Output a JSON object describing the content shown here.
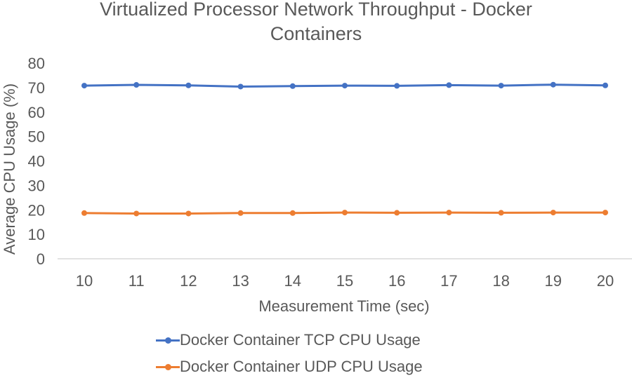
{
  "chart_data": {
    "type": "line",
    "title": "Virtualized Processor Network Throughput - Docker Containers",
    "title_lines": [
      "Virtualized Processor Network Throughput - Docker",
      "Containers"
    ],
    "xlabel": "Measurement Time (sec)",
    "ylabel": "Average CPU Usage (%)",
    "categories": [
      "10",
      "11",
      "12",
      "13",
      "14",
      "15",
      "16",
      "17",
      "18",
      "19",
      "20"
    ],
    "ylim": [
      0,
      80
    ],
    "yticks": [
      "0",
      "10",
      "20",
      "30",
      "40",
      "50",
      "60",
      "70",
      "80"
    ],
    "grid": false,
    "legend_position": "bottom",
    "series": [
      {
        "name": "Docker Container TCP CPU Usage",
        "color": "#4472C4",
        "values": [
          70.8,
          71.1,
          70.9,
          70.4,
          70.6,
          70.8,
          70.7,
          71.0,
          70.8,
          71.2,
          70.9
        ]
      },
      {
        "name": "Docker Container UDP CPU Usage",
        "color": "#ED7D31",
        "values": [
          18.7,
          18.5,
          18.5,
          18.7,
          18.7,
          18.9,
          18.8,
          18.9,
          18.8,
          18.9,
          18.9
        ]
      }
    ]
  }
}
